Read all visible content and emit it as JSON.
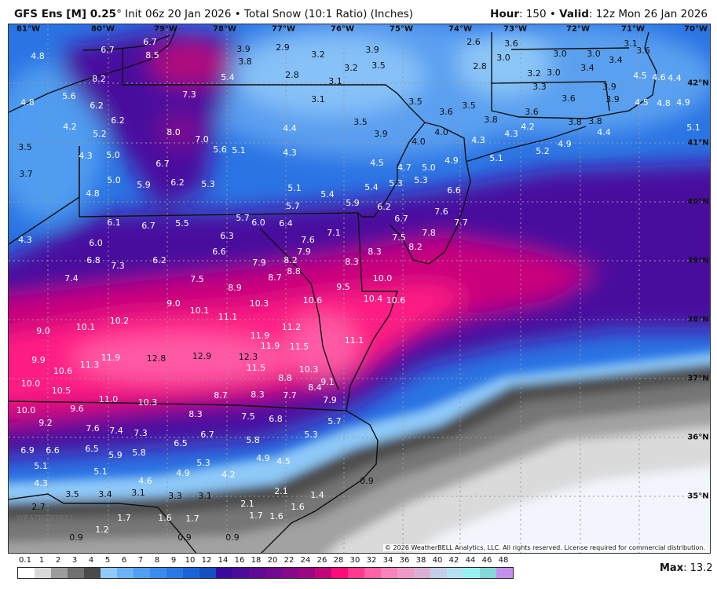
{
  "header": {
    "model": "GFS Ens [M] 0.25",
    "degree": "°",
    "init": "Init 06z 20 Jan 2026",
    "bullet": "•",
    "product": "Total Snow (10:1 Ratio) (Inches)",
    "hour_label": "Hour",
    "hour": ": 150",
    "valid_label": "Valid",
    "valid": ": 12z Mon 26 Jan 2026"
  },
  "map": {
    "lon_ticks": [
      "81°W",
      "80°W",
      "79°W",
      "78°W",
      "77°W",
      "76°W",
      "75°W",
      "74°W",
      "73°W",
      "72°W",
      "71°W",
      "70°W"
    ],
    "lat_ticks": [
      "42°N",
      "41°N",
      "40°N",
      "39°N",
      "38°N",
      "37°N",
      "36°N",
      "35°N"
    ],
    "labels": [
      "6.7",
      "6.7",
      "8.5",
      "4.8",
      "8.2",
      "3.9",
      "3.8",
      "5.4",
      "7.3",
      "5.6",
      "4.8",
      "6.2",
      "6.2",
      "4.2",
      "8.0",
      "5.2",
      "7.0",
      "3.5",
      "5.6",
      "5.1",
      "4.3",
      "5.0",
      "6.7",
      "3.7",
      "5.0",
      "5.9",
      "6.2",
      "5.3",
      "4.8",
      "2.9",
      "3.9",
      "2.6",
      "3.2",
      "3.5",
      "2.8",
      "2.8",
      "3.2",
      "3.1",
      "3.1",
      "3.5",
      "3.5",
      "3.6",
      "3.5",
      "4.4",
      "3.9",
      "4.0",
      "4.0",
      "4.3",
      "4.3",
      "4.5",
      "4.7",
      "4.9",
      "5.0",
      "5.3",
      "5.3",
      "5.1",
      "5.4",
      "5.4",
      "5.9",
      "5.7",
      "6.2",
      "6.6",
      "3.6",
      "3.1",
      "3.0",
      "3.0",
      "3.0",
      "3.6",
      "3.4",
      "3.4",
      "3.2",
      "3.0",
      "4.5",
      "4.6",
      "4.4",
      "3.3",
      "3.9",
      "3.6",
      "3.9",
      "4.5",
      "4.8",
      "4.9",
      "3.6",
      "3.8",
      "3.8",
      "3.8",
      "4.2",
      "4.3",
      "4.4",
      "5.1",
      "4.9",
      "5.2",
      "5.1",
      "5.7",
      "6.1",
      "6.7",
      "5.5",
      "4.3",
      "6.3",
      "6.0",
      "6.6",
      "6.8",
      "6.2",
      "7.3",
      "7.4",
      "7.5",
      "8.9",
      "9.0",
      "10.1",
      "11.1",
      "10.2",
      "10.1",
      "9.0",
      "9.9",
      "11.9",
      "12.8",
      "12.9",
      "11.3",
      "10.6",
      "10.0",
      "6.0",
      "6.4",
      "6.7",
      "7.6",
      "7.7",
      "7.1",
      "7.8",
      "7.5",
      "7.6",
      "7.9",
      "8.2",
      "8.3",
      "7.9",
      "8.2",
      "8.3",
      "8.8",
      "8.7",
      "10.0",
      "9.5",
      "10.3",
      "10.6",
      "10.4",
      "10.6",
      "11.2",
      "11.1",
      "11.9",
      "11.9",
      "11.5",
      "12.3",
      "11.5",
      "10.3",
      "8.8",
      "9.1",
      "10.5",
      "11.0",
      "10.3",
      "8.7",
      "10.0",
      "9.6",
      "8.3",
      "7.5",
      "9.2",
      "7.6",
      "7.4",
      "7.3",
      "6.7",
      "6.5",
      "6.9",
      "6.6",
      "6.5",
      "5.9",
      "5.8",
      "5.3",
      "5.1",
      "5.1",
      "4.9",
      "4.2",
      "4.6",
      "4.3",
      "3.5",
      "3.4",
      "3.1",
      "3.3",
      "3.1",
      "2.7",
      "1.7",
      "1.6",
      "1.7",
      "1.2",
      "0.9",
      "0.9",
      "0.9",
      "8.3",
      "7.7",
      "8.4",
      "7.9",
      "6.8",
      "5.7",
      "5.3",
      "5.8",
      "4.9",
      "4.5",
      "0.9",
      "2.1",
      "1.4",
      "2.1",
      "1.7",
      "1.6",
      "1.6"
    ],
    "copyright": "© 2026 WeatherBELL Analytics, LLC. All rights reserved. License required for commercial distribution.",
    "logo_text": "WEATHERBELL"
  },
  "colorbar": {
    "labels": [
      "0.1",
      "1",
      "2",
      "3",
      "4",
      "5",
      "6",
      "7",
      "8",
      "9",
      "10",
      "12",
      "14",
      "16",
      "18",
      "20",
      "22",
      "24",
      "26",
      "28",
      "30",
      "32",
      "34",
      "36",
      "38",
      "40",
      "42",
      "44",
      "46",
      "48"
    ],
    "colors": [
      "#ffffff",
      "#d9d9d9",
      "#9c9c9c",
      "#707070",
      "#4a4a4a",
      "#8fcaf9",
      "#6cb2f6",
      "#4f9ff2",
      "#3a8cee",
      "#2a78e6",
      "#1d63d8",
      "#1450c2",
      "#3b0a9e",
      "#4d0b9a",
      "#600b96",
      "#720a91",
      "#86098a",
      "#9c0782",
      "#c2067a",
      "#ff0a7b",
      "#ff3b90",
      "#ff62a6",
      "#f784b8",
      "#ee9cc6",
      "#dcb0d4",
      "#c4cfe9",
      "#b4e4f4",
      "#98f2f2",
      "#86d8d8",
      "#c490ec"
    ],
    "max_label": "Max",
    "max_value": ": 13.2"
  }
}
